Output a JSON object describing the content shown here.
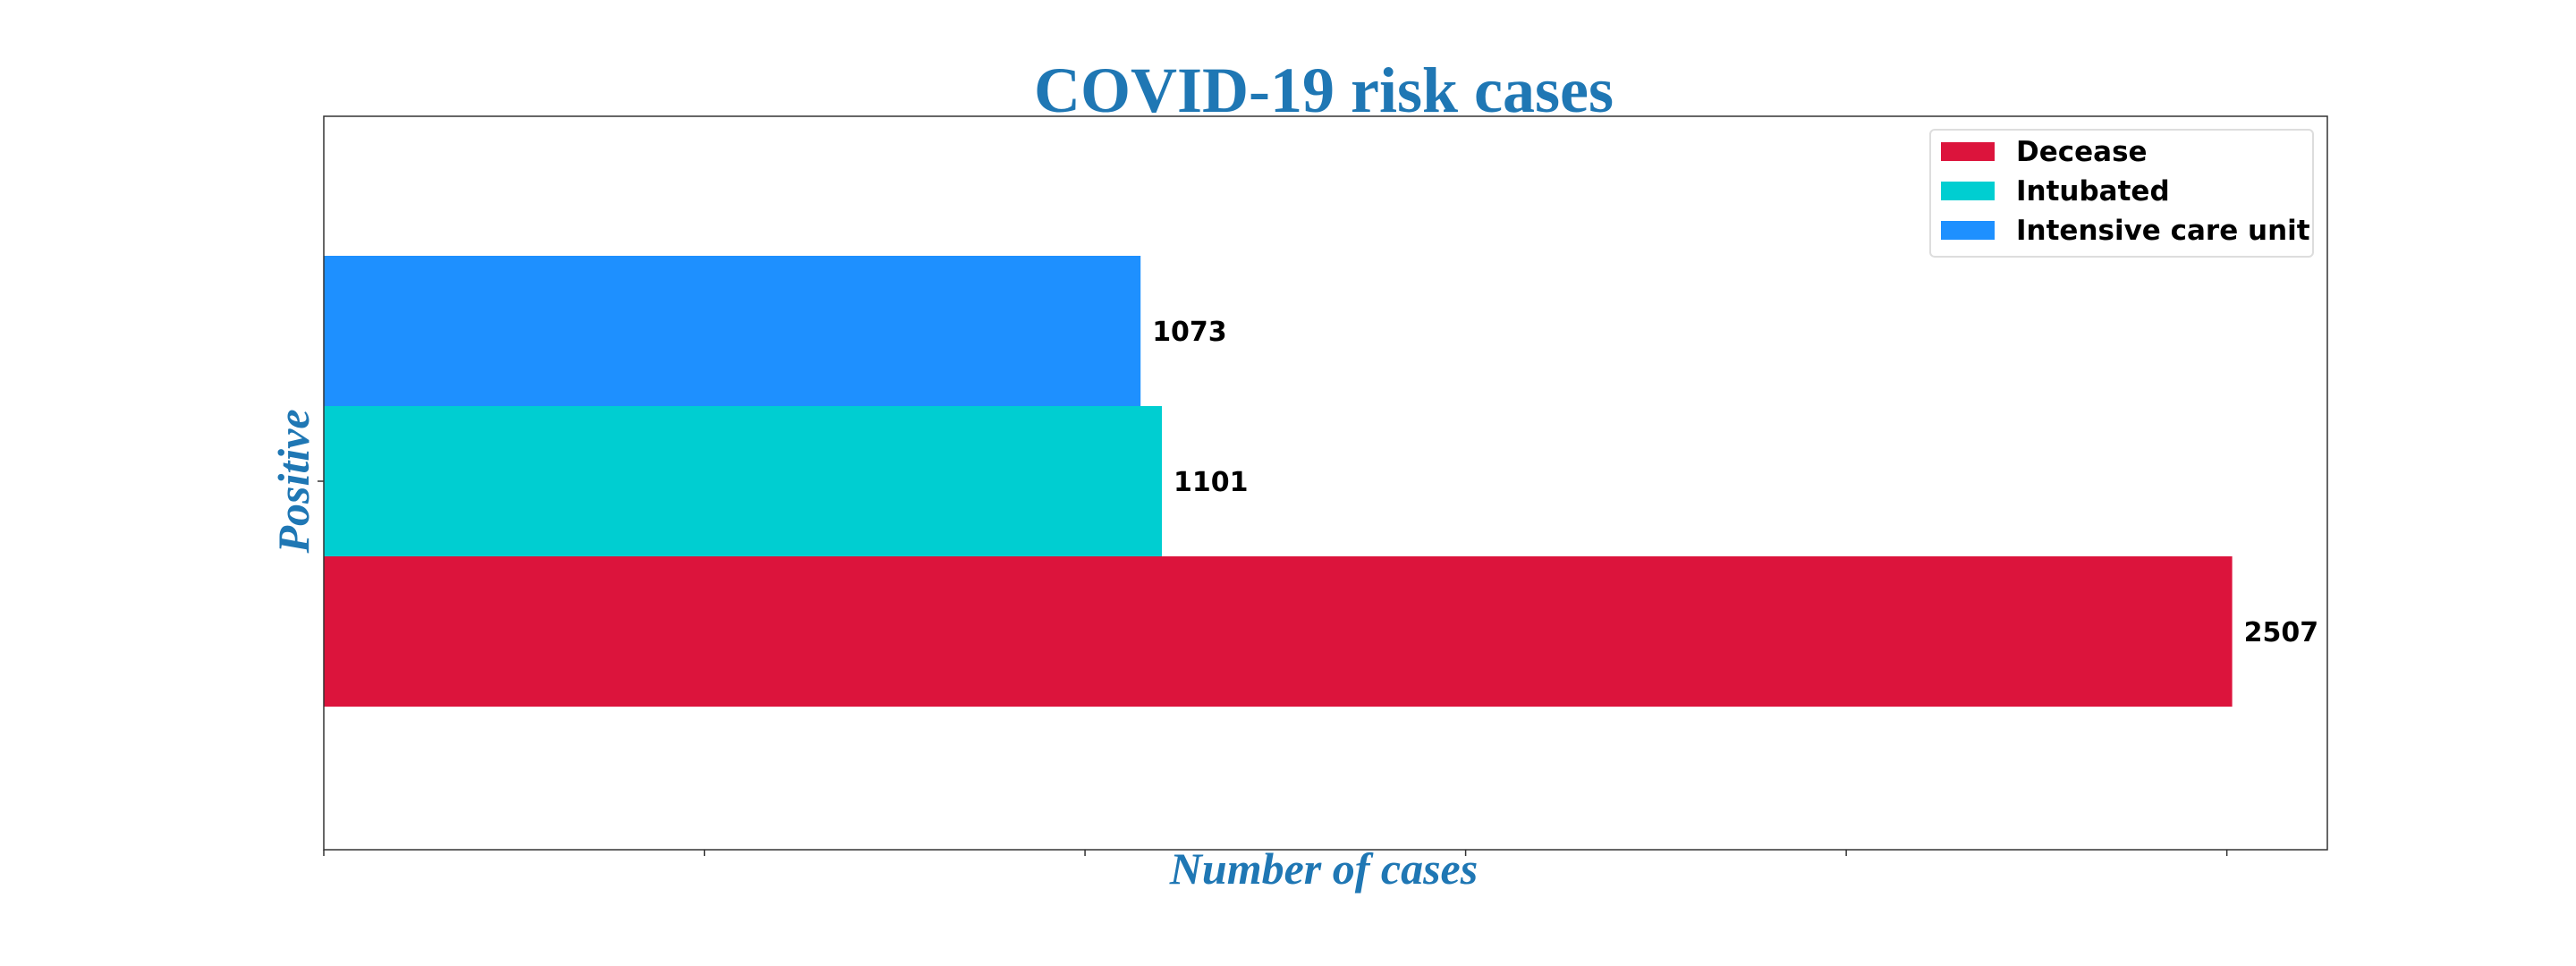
{
  "chart_data": {
    "type": "bar",
    "orientation": "horizontal",
    "title": "COVID-19 risk cases",
    "xlabel": "Number of cases",
    "ylabel": "Positive",
    "categories": [
      "Positive"
    ],
    "series": [
      {
        "name": "Decease",
        "values": [
          2507
        ],
        "color": "#DC143C"
      },
      {
        "name": "Intubated",
        "values": [
          1101
        ],
        "color": "#00CED1"
      },
      {
        "name": "Intensive care unit",
        "values": [
          1073
        ],
        "color": "#1E90FF"
      }
    ],
    "xlim": [
      0,
      2632
    ],
    "x_ticks": [
      0,
      500,
      1000,
      1500,
      2000,
      2500
    ],
    "grid": false,
    "legend_position": "top-right",
    "title_color": "#1F77B4",
    "label_color": "#1F77B4"
  }
}
